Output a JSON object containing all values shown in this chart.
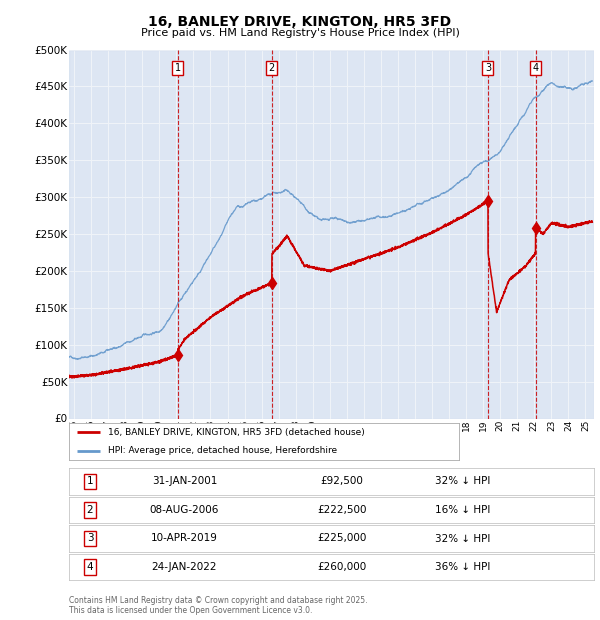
{
  "title": "16, BANLEY DRIVE, KINGTON, HR5 3FD",
  "subtitle": "Price paid vs. HM Land Registry's House Price Index (HPI)",
  "background_color": "#ffffff",
  "plot_bg_color": "#e8eef8",
  "grid_color": "#ffffff",
  "shade_color": "#dce6f5",
  "ylim": [
    0,
    500000
  ],
  "yticks": [
    0,
    50000,
    100000,
    150000,
    200000,
    250000,
    300000,
    350000,
    400000,
    450000,
    500000
  ],
  "ytick_labels": [
    "£0",
    "£50K",
    "£100K",
    "£150K",
    "£200K",
    "£250K",
    "£300K",
    "£350K",
    "£400K",
    "£450K",
    "£500K"
  ],
  "xlim_start": 1994.7,
  "xlim_end": 2025.5,
  "purchases": [
    {
      "num": 1,
      "date": "31-JAN-2001",
      "price": 92500,
      "x": 2001.08,
      "pct": "32%"
    },
    {
      "num": 2,
      "date": "08-AUG-2006",
      "price": 222500,
      "x": 2006.6,
      "pct": "16%"
    },
    {
      "num": 3,
      "date": "10-APR-2019",
      "price": 225000,
      "x": 2019.28,
      "pct": "32%"
    },
    {
      "num": 4,
      "date": "24-JAN-2022",
      "price": 260000,
      "x": 2022.07,
      "pct": "36%"
    }
  ],
  "legend_label_red": "16, BANLEY DRIVE, KINGTON, HR5 3FD (detached house)",
  "legend_label_blue": "HPI: Average price, detached house, Herefordshire",
  "footer": "Contains HM Land Registry data © Crown copyright and database right 2025.\nThis data is licensed under the Open Government Licence v3.0.",
  "red_color": "#cc0000",
  "blue_color": "#6699cc",
  "table_rows": [
    {
      "num": 1,
      "date": "31-JAN-2001",
      "price": "£92,500",
      "pct": "32% ↓ HPI"
    },
    {
      "num": 2,
      "date": "08-AUG-2006",
      "price": "£222,500",
      "pct": "16% ↓ HPI"
    },
    {
      "num": 3,
      "date": "10-APR-2019",
      "price": "£225,000",
      "pct": "32% ↓ HPI"
    },
    {
      "num": 4,
      "date": "24-JAN-2022",
      "price": "£260,000",
      "pct": "36% ↓ HPI"
    }
  ]
}
